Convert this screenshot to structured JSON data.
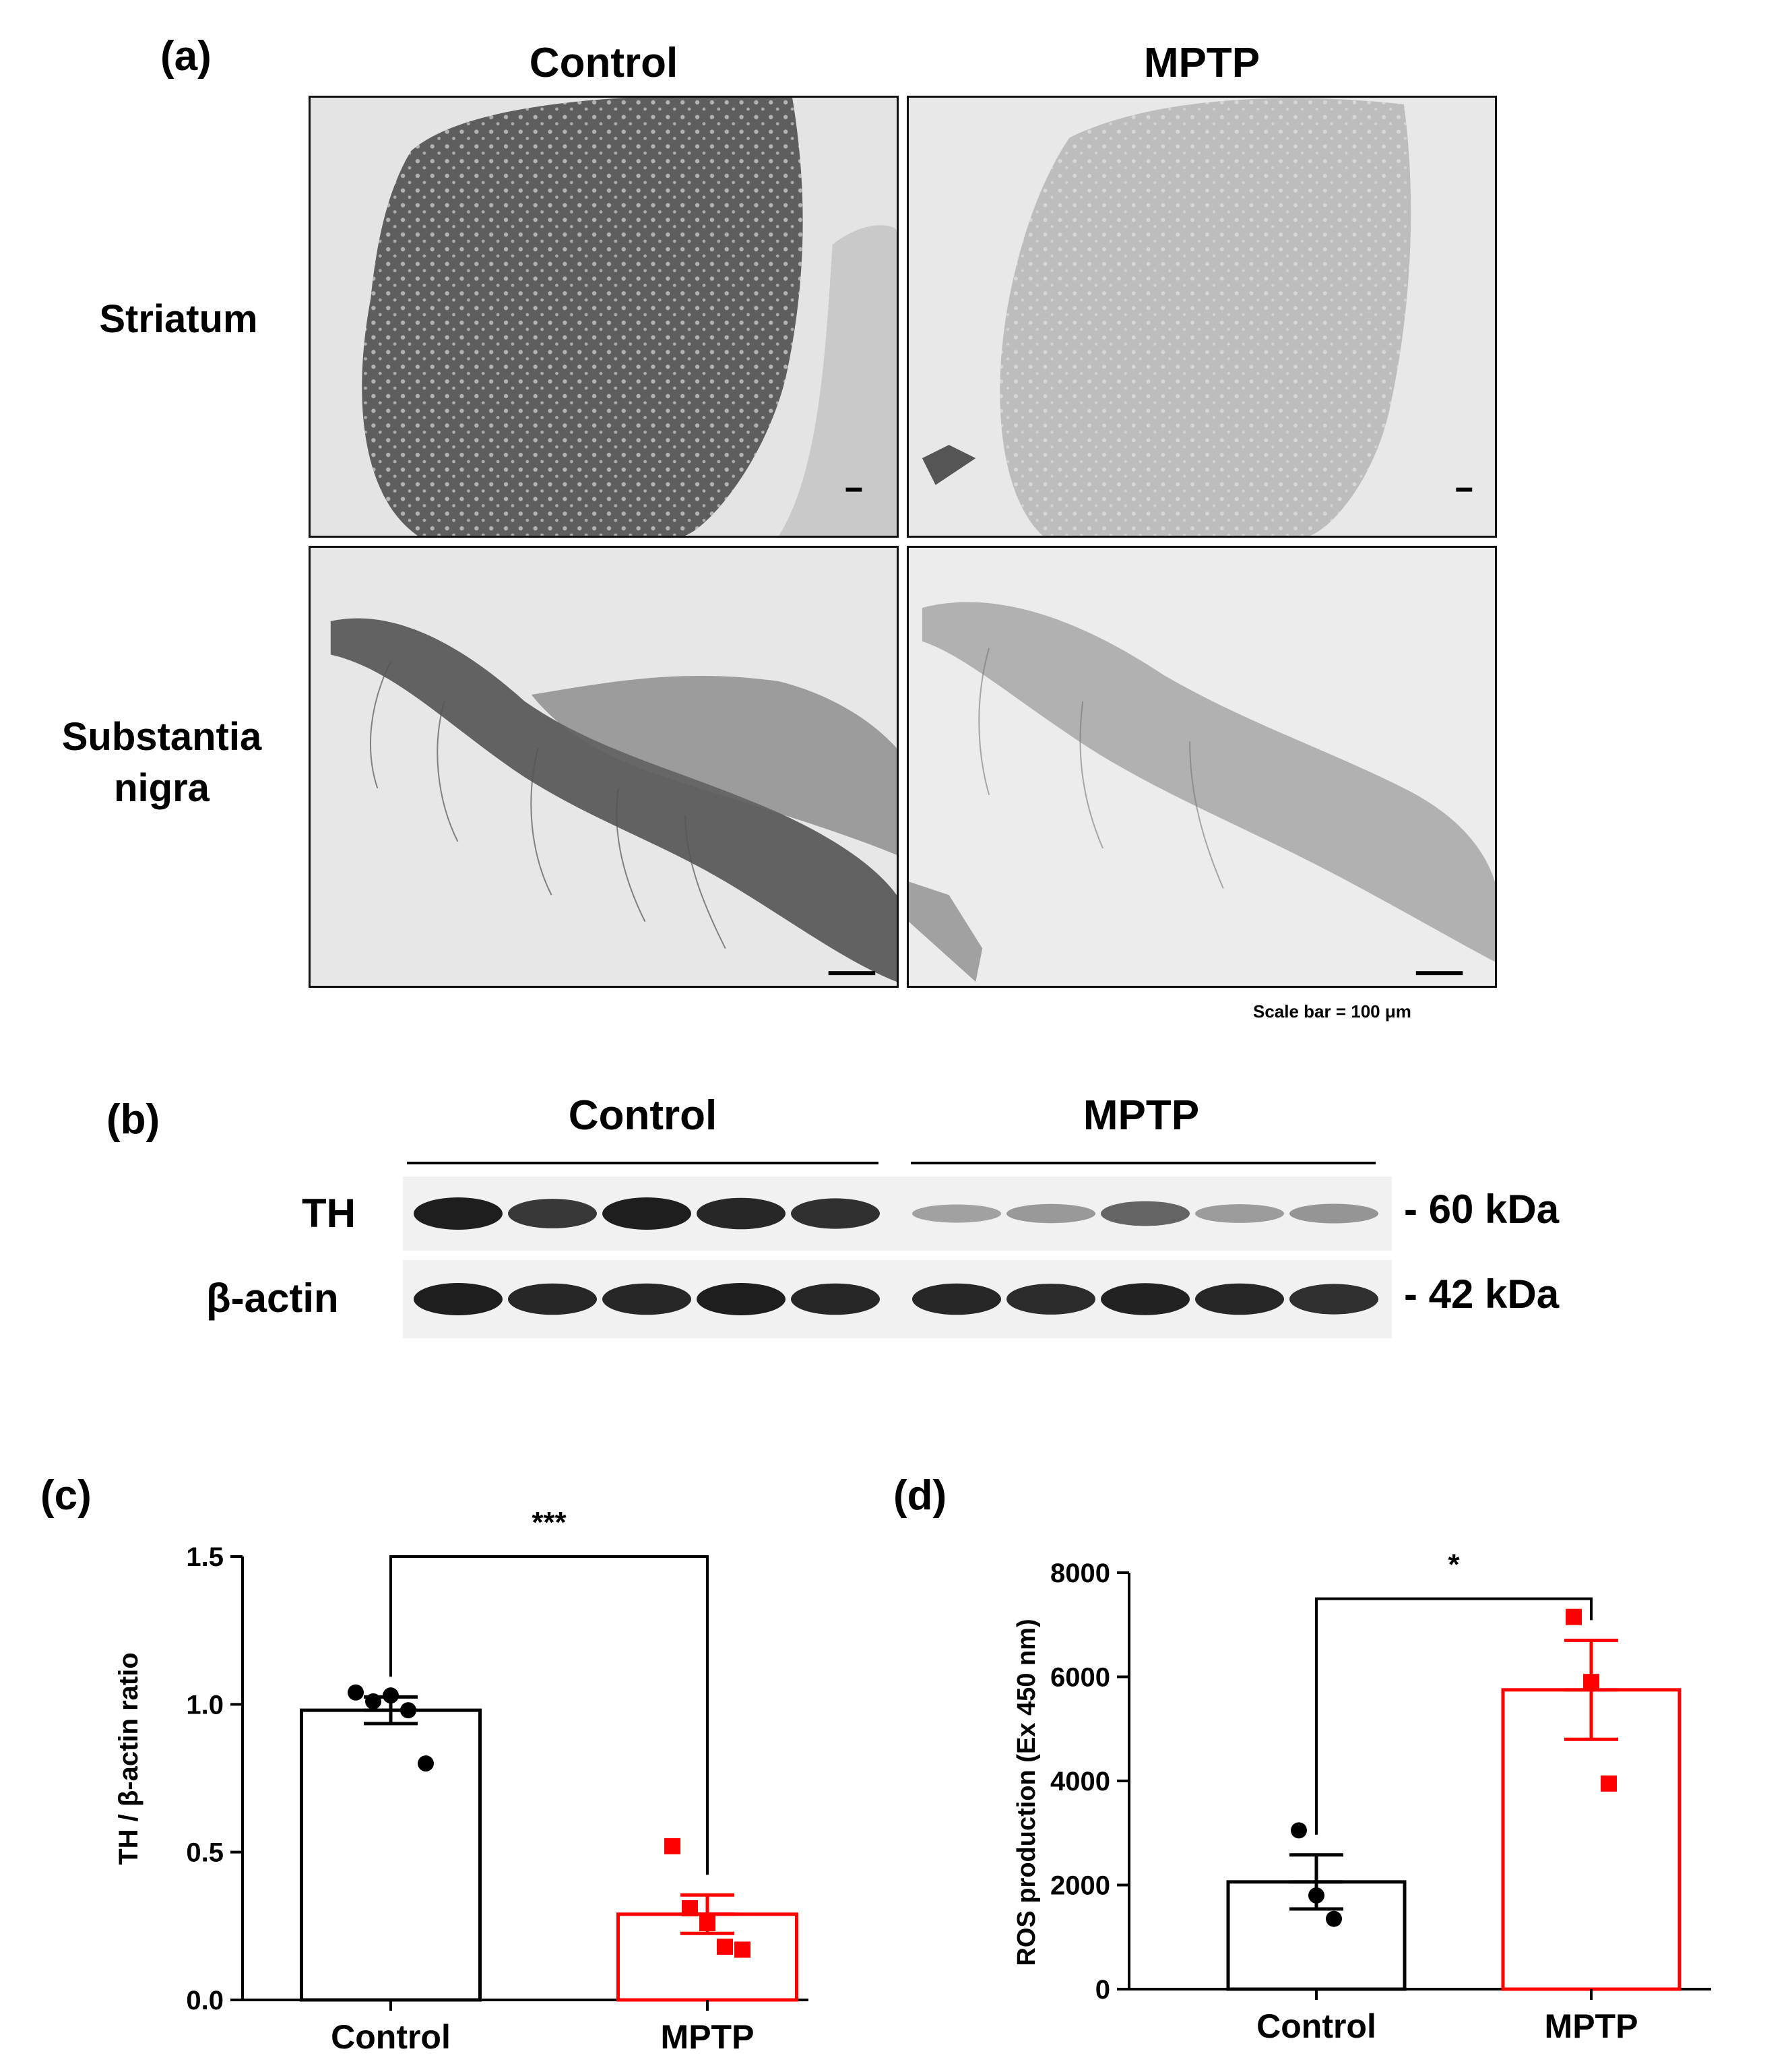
{
  "panel_a": {
    "label": "(a)",
    "columns": [
      "Control",
      "MPTP"
    ],
    "rows": [
      {
        "line1": "Striatum",
        "line2": ""
      },
      {
        "line1": "Substantia",
        "line2": "nigra"
      }
    ],
    "scale_note": "Scale bar = 100 μm"
  },
  "panel_b": {
    "label": "(b)",
    "groups": [
      "Control",
      "MPTP"
    ],
    "rows": [
      {
        "protein": "TH",
        "size": "- 60 kDa",
        "intensity": [
          1.0,
          0.85,
          1.0,
          0.95,
          0.9,
          0.25,
          0.3,
          0.6,
          0.28,
          0.32
        ]
      },
      {
        "protein": "β-actin",
        "size": "- 42 kDa",
        "intensity": [
          1.0,
          0.95,
          0.95,
          1.0,
          0.95,
          0.95,
          0.92,
          0.98,
          0.95,
          0.9
        ]
      }
    ]
  },
  "chart_data": [
    {
      "type": "bar",
      "panel": "(c)",
      "title": "",
      "xlabel": "",
      "ylabel": "TH / β-actin ratio",
      "categories": [
        "Control",
        "MPTP"
      ],
      "values": [
        0.98,
        0.29
      ],
      "errors": [
        0.045,
        0.065
      ],
      "points": [
        [
          1.04,
          1.01,
          1.03,
          0.98,
          0.8
        ],
        [
          0.52,
          0.31,
          0.26,
          0.18,
          0.17
        ]
      ],
      "ylim": [
        0,
        1.5
      ],
      "yticks": [
        "0.0",
        "0.5",
        "1.0",
        "1.5"
      ],
      "significance": "***",
      "colors": [
        "#000000",
        "#ff0000"
      ]
    },
    {
      "type": "bar",
      "panel": "(d)",
      "title": "",
      "xlabel": "",
      "ylabel": "ROS production (Ex 450 nm)",
      "categories": [
        "Control",
        "MPTP"
      ],
      "values": [
        2060,
        5750
      ],
      "errors": [
        520,
        950
      ],
      "points": [
        [
          3050,
          1800,
          1350
        ],
        [
          7150,
          5900,
          3950
        ]
      ],
      "ylim": [
        0,
        8000
      ],
      "yticks": [
        "0",
        "2000",
        "4000",
        "6000",
        "8000"
      ],
      "significance": "*",
      "colors": [
        "#000000",
        "#ff0000"
      ]
    }
  ]
}
